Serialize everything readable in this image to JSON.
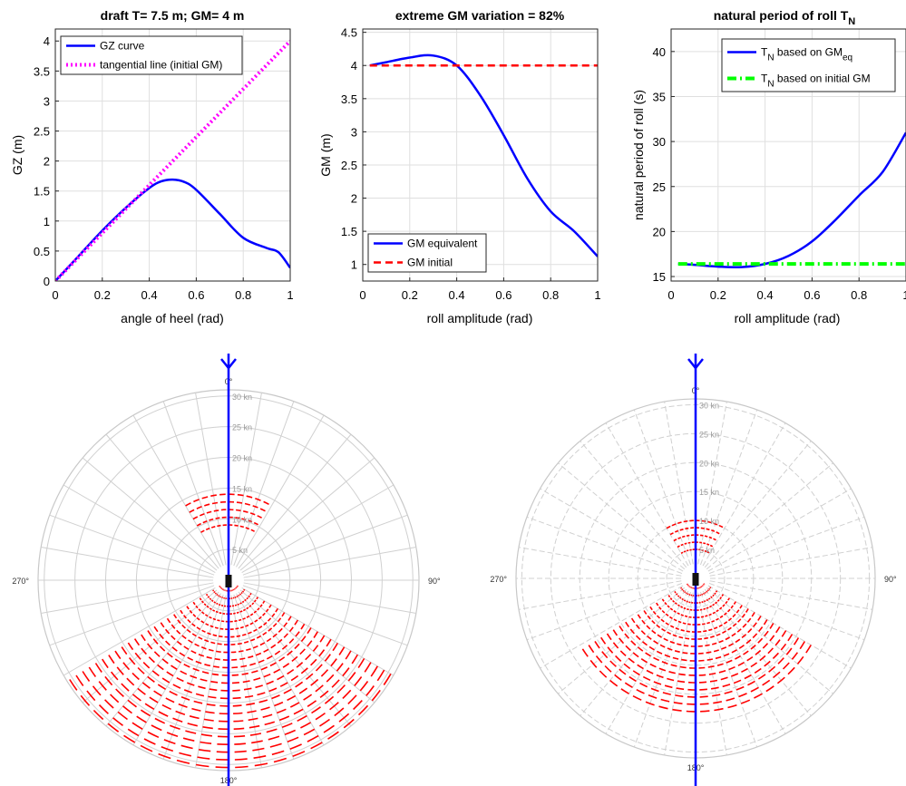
{
  "chart_data": [
    {
      "type": "line",
      "title": "draft T= 7.5 m; GM= 4 m",
      "xlabel": "angle of heel (rad)",
      "ylabel": "GZ (m)",
      "xlim": [
        0,
        1
      ],
      "ylim": [
        0,
        4.2
      ],
      "xticks": [
        "0",
        "0.2",
        "0.4",
        "0.6",
        "0.8",
        "1"
      ],
      "yticks": [
        "0",
        "0.5",
        "1",
        "1.5",
        "2",
        "2.5",
        "3",
        "3.5",
        "4"
      ],
      "grid": true,
      "legend_position": "top-left",
      "series": [
        {
          "name": "GZ curve",
          "color": "#0000ff",
          "style": "solid",
          "x": [
            0,
            0.1,
            0.2,
            0.3,
            0.4,
            0.45,
            0.5,
            0.55,
            0.6,
            0.7,
            0.8,
            0.9,
            0.95,
            1.0
          ],
          "y": [
            0,
            0.42,
            0.84,
            1.22,
            1.55,
            1.66,
            1.69,
            1.65,
            1.52,
            1.12,
            0.72,
            0.55,
            0.48,
            0.22
          ]
        },
        {
          "name": "tangential line (initial GM)",
          "color": "#ff00ff",
          "style": "dotted",
          "x": [
            0,
            1
          ],
          "y": [
            0,
            4
          ]
        }
      ]
    },
    {
      "type": "line",
      "title": "extreme GM variation = 82%",
      "xlabel": "roll amplitude (rad)",
      "ylabel": "GM (m)",
      "xlim": [
        0,
        1
      ],
      "ylim": [
        0.75,
        4.55
      ],
      "xticks": [
        "0",
        "0.2",
        "0.4",
        "0.6",
        "0.8",
        "1"
      ],
      "yticks": [
        "1",
        "1.5",
        "2",
        "2.5",
        "3",
        "3.5",
        "4",
        "4.5"
      ],
      "grid": true,
      "legend_position": "bottom-left",
      "series": [
        {
          "name": "GM equivalent",
          "color": "#0000ff",
          "style": "solid",
          "x": [
            0.03,
            0.1,
            0.2,
            0.3,
            0.4,
            0.5,
            0.6,
            0.7,
            0.8,
            0.9,
            1.0
          ],
          "y": [
            4.0,
            4.05,
            4.12,
            4.15,
            4.0,
            3.55,
            2.95,
            2.3,
            1.8,
            1.5,
            1.12
          ]
        },
        {
          "name": "GM initial",
          "color": "#ff0000",
          "style": "dashed",
          "x": [
            0.03,
            1.0
          ],
          "y": [
            4.0,
            4.0
          ]
        }
      ]
    },
    {
      "type": "line",
      "title": "natural period of roll T",
      "title_sub": "N",
      "xlabel": "roll amplitude (rad)",
      "ylabel": "natural period of roll (s)",
      "xlim": [
        0,
        1
      ],
      "ylim": [
        14.5,
        42.5
      ],
      "xticks": [
        "0",
        "0.2",
        "0.4",
        "0.6",
        "0.8",
        "1"
      ],
      "yticks": [
        "15",
        "20",
        "25",
        "30",
        "35",
        "40"
      ],
      "grid": true,
      "legend_position": "top-right",
      "series": [
        {
          "name": "T",
          "name_sub": "N",
          "name_rest": " based on GM",
          "name_rest_sub": "eq",
          "color": "#0000ff",
          "style": "solid",
          "x": [
            0.03,
            0.1,
            0.2,
            0.3,
            0.4,
            0.5,
            0.6,
            0.7,
            0.8,
            0.9,
            1.0
          ],
          "y": [
            16.4,
            16.3,
            16.1,
            16.05,
            16.4,
            17.3,
            18.9,
            21.3,
            24.0,
            26.6,
            31.0
          ]
        },
        {
          "name": "T",
          "name_sub": "N",
          "name_rest": " based on initial GM",
          "color": "#00ff00",
          "style": "dashdot",
          "x": [
            0.03,
            1.0
          ],
          "y": [
            16.4,
            16.4
          ]
        }
      ]
    },
    {
      "type": "polar",
      "radial_labels": [
        "5 kn",
        "10 kn",
        "15 kn",
        "20 kn",
        "25 kn",
        "30 kn"
      ],
      "angle_labels": [
        "0°",
        "90°",
        "180°",
        "270°"
      ],
      "ship_heading_color": "#0000ff",
      "risk_color": "#ff0000",
      "risk_zones": [
        {
          "sector": "head seas",
          "bearing_from": -30,
          "bearing_to": 30,
          "speed_from": 8.5,
          "speed_to": 15
        },
        {
          "sector": "following seas",
          "bearing_from": 120,
          "bearing_to": 240,
          "speed_from": 0,
          "speed_to": 31
        }
      ]
    },
    {
      "type": "polar",
      "radial_labels": [
        "5 kn",
        "10 kn",
        "15 kn",
        "20 kn",
        "25 kn",
        "30 kn"
      ],
      "angle_labels": [
        "0°",
        "90°",
        "180°",
        "270°"
      ],
      "ship_heading_color": "#0000ff",
      "risk_color": "#ff0000",
      "risk_zones": [
        {
          "sector": "head seas",
          "bearing_from": -30,
          "bearing_to": 30,
          "speed_from": 4.5,
          "speed_to": 10
        },
        {
          "sector": "following seas",
          "bearing_from": 120,
          "bearing_to": 240,
          "speed_from": 0,
          "speed_to": 24
        }
      ]
    }
  ]
}
